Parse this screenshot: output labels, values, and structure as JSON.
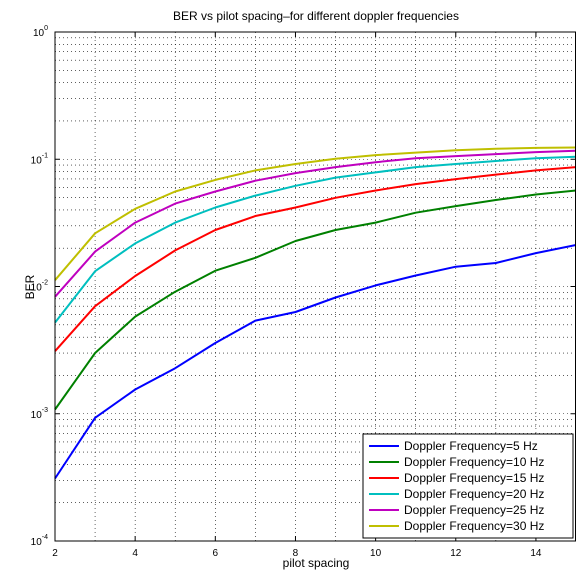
{
  "chart_data": {
    "type": "line",
    "title": "BER vs pilot spacing–for different doppler frequencies",
    "xlabel": "pilot spacing",
    "ylabel": "BER",
    "xlim": [
      2,
      15
    ],
    "ylim": [
      0.0001,
      1
    ],
    "yscale": "log",
    "grid": true,
    "legend_position": "bottom-right",
    "x_ticks": [
      2,
      4,
      6,
      8,
      10,
      12,
      14
    ],
    "x_tick_labels": [
      "2",
      "4",
      "6",
      "8",
      "10",
      "12",
      "14"
    ],
    "y_tick_labels": [
      "10^-4",
      "10^-3",
      "10^-2",
      "10^-1",
      "10^0"
    ],
    "x": [
      2,
      3,
      4,
      5,
      6,
      7,
      8,
      9,
      10,
      11,
      12,
      13,
      14,
      15
    ],
    "series": [
      {
        "name": "Doppler Frequency=5 Hz",
        "color": "#0000ff",
        "values": [
          0.00031,
          0.00093,
          0.00155,
          0.00228,
          0.0036,
          0.0054,
          0.0063,
          0.0082,
          0.0102,
          0.0122,
          0.0143,
          0.0153,
          0.0183,
          0.0212
        ]
      },
      {
        "name": "Doppler Frequency=10 Hz",
        "color": "#008000",
        "values": [
          0.00108,
          0.003,
          0.0058,
          0.0091,
          0.0133,
          0.0168,
          0.0228,
          0.0278,
          0.0318,
          0.038,
          0.0428,
          0.0478,
          0.0528,
          0.0568
        ]
      },
      {
        "name": "Doppler Frequency=15 Hz",
        "color": "#ff0000",
        "values": [
          0.0031,
          0.007,
          0.0121,
          0.0192,
          0.0278,
          0.0358,
          0.0418,
          0.0498,
          0.0568,
          0.0638,
          0.0698,
          0.0758,
          0.0818,
          0.0868
        ]
      },
      {
        "name": "Doppler Frequency=20 Hz",
        "color": "#00bfbf",
        "values": [
          0.0052,
          0.0132,
          0.0218,
          0.0318,
          0.0418,
          0.0518,
          0.0618,
          0.0718,
          0.0788,
          0.0868,
          0.0918,
          0.0968,
          0.1018,
          0.1048
        ]
      },
      {
        "name": "Doppler Frequency=25 Hz",
        "color": "#bf00bf",
        "values": [
          0.0083,
          0.0188,
          0.0318,
          0.0448,
          0.0558,
          0.0678,
          0.0778,
          0.0868,
          0.0948,
          0.1018,
          0.1058,
          0.1098,
          0.1138,
          0.1168
        ]
      },
      {
        "name": "Doppler Frequency=30 Hz",
        "color": "#bfbf00",
        "values": [
          0.0112,
          0.0262,
          0.0408,
          0.0558,
          0.0688,
          0.0818,
          0.0918,
          0.1008,
          0.1078,
          0.1128,
          0.1178,
          0.1208,
          0.1228,
          0.1238
        ]
      }
    ]
  }
}
